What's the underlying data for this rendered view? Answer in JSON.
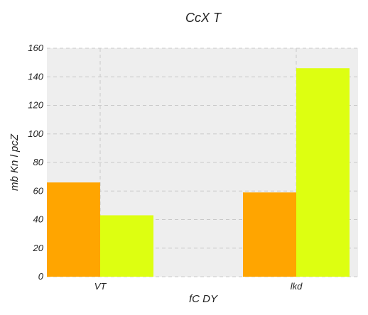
{
  "chart_data": {
    "type": "bar",
    "title": "CcX T",
    "xlabel": "fC DY",
    "ylabel": "mb Kn l pcZ",
    "categories": [
      "VT",
      "lkd"
    ],
    "series": [
      {
        "values": [
          66,
          59
        ],
        "color": "#ffa500"
      },
      {
        "values": [
          43,
          146
        ],
        "color": "#ddff11"
      }
    ],
    "ylim": [
      0,
      160
    ],
    "yticks": [
      0,
      20,
      40,
      60,
      80,
      100,
      120,
      140,
      160
    ],
    "grid": true,
    "background": "#eeeeee"
  }
}
